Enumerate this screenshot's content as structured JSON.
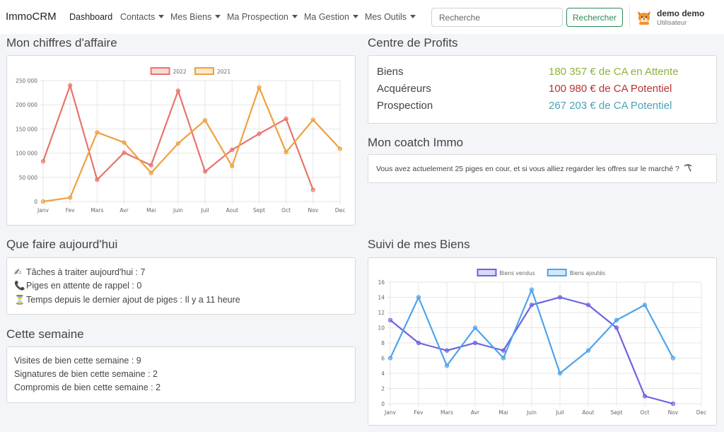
{
  "navbar": {
    "brand": "ImmoCRM",
    "items": [
      {
        "label": "Dashboard",
        "dropdown": false
      },
      {
        "label": "Contacts",
        "dropdown": true
      },
      {
        "label": "Mes Biens",
        "dropdown": true
      },
      {
        "label": "Ma Prospection",
        "dropdown": true
      },
      {
        "label": "Ma Gestion",
        "dropdown": true
      },
      {
        "label": "Mes Outils",
        "dropdown": true
      }
    ],
    "search_placeholder": "Recherche",
    "search_button": "Rechercher",
    "user_name": "demo demo",
    "user_role": "Utilisateur",
    "avatar_icon": "fox-avatar-icon"
  },
  "sections": {
    "revenue_title": "Mon chiffres d'affaire",
    "profits_title": "Centre de Profits",
    "coach_title": "Mon coatch Immo",
    "today_title": "Que faire aujourd'hui",
    "week_title": "Cette semaine",
    "biens_title": "Suivi de mes Biens"
  },
  "profits": [
    {
      "label": "Biens",
      "value": "180 357 € de CA en Attente",
      "color": "#8db33a"
    },
    {
      "label": "Acquéreurs",
      "value": "100 980 € de CA Potentiel",
      "color": "#b83232"
    },
    {
      "label": "Prospection",
      "value": "267 203 € de CA Potentiel",
      "color": "#4aa3b5"
    }
  ],
  "coach": {
    "text": "Vous avez actuelement 25 piges en cour, et si vous alliez regarder les offres sur le marché ?",
    "icon": "pick-icon"
  },
  "today": [
    {
      "icon": "writing-hand-icon",
      "glyph": "✍",
      "text": "Tâches à traiter aujourd'hui : 7"
    },
    {
      "icon": "telephone-icon",
      "glyph": "📞",
      "text": "Piges en attente de rappel : 0"
    },
    {
      "icon": "hourglass-icon",
      "glyph": "⏳",
      "text": "Temps depuis le dernier ajout de piges : Il y a 11 heure"
    }
  ],
  "week": [
    "Visites de bien cette semaine : 9",
    "Signatures de bien cette semaine : 2",
    "Compromis de bien cette semaine : 2"
  ],
  "chart_data": [
    {
      "type": "line",
      "categories": [
        "Janv",
        "Fev",
        "Mars",
        "Avr",
        "Mai",
        "Juin",
        "Juil",
        "Aout",
        "Sept",
        "Oct",
        "Nov",
        "Dec"
      ],
      "ylim": [
        0,
        250000
      ],
      "yticks": [
        0,
        50000,
        100000,
        150000,
        200000,
        250000
      ],
      "ytick_labels": [
        "0",
        "50 000",
        "100 000",
        "150 000",
        "200 000",
        "250 000"
      ],
      "grid": true,
      "legend": "top-center",
      "series": [
        {
          "name": "2022",
          "color": "#e8736c",
          "values": [
            83000,
            240000,
            45000,
            101000,
            75000,
            229000,
            62000,
            107000,
            140000,
            171000,
            24000,
            null
          ]
        },
        {
          "name": "2021",
          "color": "#eea140",
          "values": [
            0,
            8000,
            143000,
            122000,
            59000,
            120000,
            168000,
            73000,
            236000,
            102000,
            169000,
            109000
          ]
        }
      ]
    },
    {
      "type": "line",
      "categories": [
        "Janv",
        "Fev",
        "Mars",
        "Avr",
        "Mai",
        "Juin",
        "Juil",
        "Aout",
        "Sept",
        "Oct",
        "Nov",
        "Dec"
      ],
      "ylim": [
        0,
        16
      ],
      "yticks": [
        0,
        2,
        4,
        6,
        8,
        10,
        12,
        14,
        16
      ],
      "ytick_labels": [
        "0",
        "2",
        "4",
        "6",
        "8",
        "10",
        "12",
        "14",
        "16"
      ],
      "grid": true,
      "legend": "top-center",
      "series": [
        {
          "name": "Biens vendus",
          "color": "#6b63e0",
          "values": [
            11,
            8,
            7,
            8,
            7,
            13,
            14,
            13,
            10,
            1,
            0,
            null
          ]
        },
        {
          "name": "Biens ajoutés",
          "color": "#4fa3ea",
          "values": [
            6,
            14,
            5,
            10,
            6,
            15,
            4,
            7,
            11,
            13,
            6,
            null
          ]
        }
      ]
    }
  ]
}
